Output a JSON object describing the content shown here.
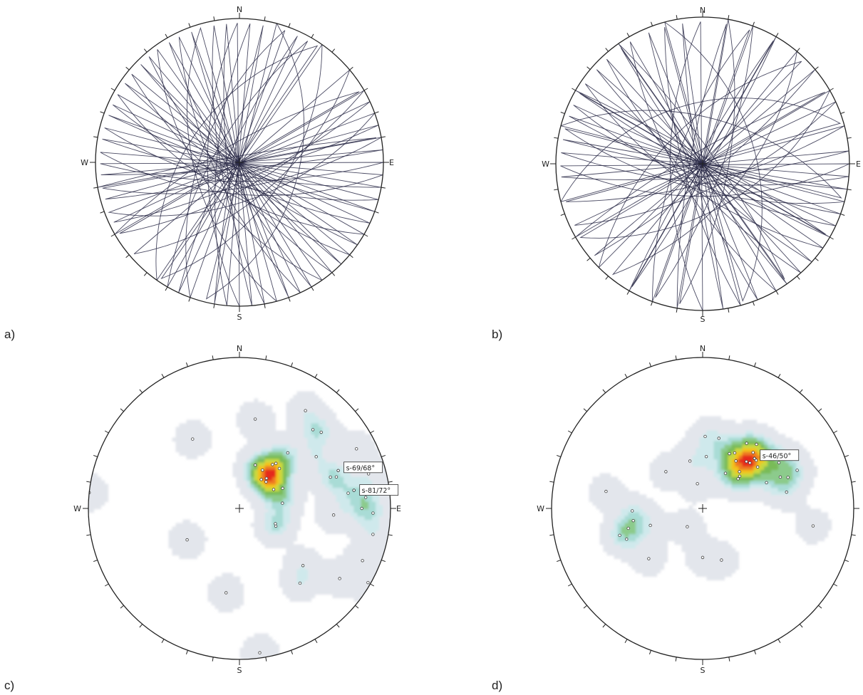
{
  "directions": {
    "n": "N",
    "s": "S",
    "e": "E",
    "w": "W"
  },
  "colors": {
    "circle": "#222222",
    "great_circle": "#2a2a48",
    "tick": "#222222",
    "pole": "#444444",
    "contour": [
      "#e3e6ec",
      "#cfe9ec",
      "#a9dcd6",
      "#8ccb8c",
      "#79bb58",
      "#c8d93f",
      "#f3c21d",
      "#ee7a20",
      "#e52b1f"
    ]
  },
  "panels": [
    {
      "id": "a",
      "label": "a)",
      "type": "great-circles",
      "great_circles": [
        {
          "dd": 350,
          "dip": 85
        },
        {
          "dd": 330,
          "dip": 75
        },
        {
          "dd": 305,
          "dip": 50
        },
        {
          "dd": 300,
          "dip": 70
        },
        {
          "dd": 295,
          "dip": 80
        },
        {
          "dd": 290,
          "dip": 60
        },
        {
          "dd": 280,
          "dip": 85
        },
        {
          "dd": 275,
          "dip": 72
        },
        {
          "dd": 270,
          "dip": 65
        },
        {
          "dd": 265,
          "dip": 80
        },
        {
          "dd": 260,
          "dip": 75
        },
        {
          "dd": 255,
          "dip": 55
        },
        {
          "dd": 250,
          "dip": 85
        },
        {
          "dd": 245,
          "dip": 70
        },
        {
          "dd": 240,
          "dip": 80
        },
        {
          "dd": 235,
          "dip": 60
        },
        {
          "dd": 230,
          "dip": 75
        },
        {
          "dd": 225,
          "dip": 85
        },
        {
          "dd": 220,
          "dip": 70
        },
        {
          "dd": 215,
          "dip": 80
        },
        {
          "dd": 210,
          "dip": 65
        },
        {
          "dd": 205,
          "dip": 75
        },
        {
          "dd": 200,
          "dip": 85
        },
        {
          "dd": 195,
          "dip": 72
        },
        {
          "dd": 190,
          "dip": 80
        },
        {
          "dd": 185,
          "dip": 65
        },
        {
          "dd": 180,
          "dip": 75
        },
        {
          "dd": 175,
          "dip": 85
        },
        {
          "dd": 170,
          "dip": 70
        },
        {
          "dd": 165,
          "dip": 80
        },
        {
          "dd": 160,
          "dip": 60
        },
        {
          "dd": 155,
          "dip": 75
        },
        {
          "dd": 150,
          "dip": 70
        },
        {
          "dd": 140,
          "dip": 60
        },
        {
          "dd": 125,
          "dip": 55
        },
        {
          "dd": 105,
          "dip": 45
        }
      ]
    },
    {
      "id": "b",
      "label": "b)",
      "type": "great-circles",
      "great_circles": [
        {
          "dd": 345,
          "dip": 45
        },
        {
          "dd": 330,
          "dip": 80
        },
        {
          "dd": 315,
          "dip": 60
        },
        {
          "dd": 300,
          "dip": 85
        },
        {
          "dd": 290,
          "dip": 70
        },
        {
          "dd": 280,
          "dip": 80
        },
        {
          "dd": 270,
          "dip": 65
        },
        {
          "dd": 262,
          "dip": 85
        },
        {
          "dd": 255,
          "dip": 75
        },
        {
          "dd": 248,
          "dip": 80
        },
        {
          "dd": 240,
          "dip": 70
        },
        {
          "dd": 235,
          "dip": 85
        },
        {
          "dd": 228,
          "dip": 75
        },
        {
          "dd": 222,
          "dip": 80
        },
        {
          "dd": 215,
          "dip": 70
        },
        {
          "dd": 210,
          "dip": 85
        },
        {
          "dd": 205,
          "dip": 75
        },
        {
          "dd": 200,
          "dip": 80
        },
        {
          "dd": 195,
          "dip": 70
        },
        {
          "dd": 190,
          "dip": 85
        },
        {
          "dd": 185,
          "dip": 75
        },
        {
          "dd": 180,
          "dip": 65
        },
        {
          "dd": 175,
          "dip": 80
        },
        {
          "dd": 165,
          "dip": 75
        },
        {
          "dd": 155,
          "dip": 70
        },
        {
          "dd": 150,
          "dip": 55
        },
        {
          "dd": 140,
          "dip": 80
        },
        {
          "dd": 130,
          "dip": 60
        },
        {
          "dd": 120,
          "dip": 85
        },
        {
          "dd": 110,
          "dip": 75
        },
        {
          "dd": 100,
          "dip": 70
        },
        {
          "dd": 75,
          "dip": 50
        },
        {
          "dd": 55,
          "dip": 80
        },
        {
          "dd": 30,
          "dip": 85
        },
        {
          "dd": 15,
          "dip": 55
        }
      ]
    },
    {
      "id": "c",
      "label": "c)",
      "type": "pole-density",
      "poles": [
        {
          "dd": 146,
          "dip": 58
        },
        {
          "dd": 190,
          "dip": 62
        },
        {
          "dd": 200,
          "dip": 34
        },
        {
          "dd": 211,
          "dip": 33
        },
        {
          "dd": 225,
          "dip": 28
        },
        {
          "dd": 222,
          "dip": 30
        },
        {
          "dd": 217,
          "dip": 27
        },
        {
          "dd": 241,
          "dip": 29
        },
        {
          "dd": 221,
          "dip": 52
        },
        {
          "dd": 225,
          "dip": 41
        },
        {
          "dd": 219,
          "dip": 42
        },
        {
          "dd": 217,
          "dip": 40
        },
        {
          "dd": 245,
          "dip": 35
        },
        {
          "dd": 263,
          "dip": 32
        },
        {
          "dd": 296,
          "dip": 30
        },
        {
          "dd": 293,
          "dip": 29
        },
        {
          "dd": 252,
          "dip": 68
        },
        {
          "dd": 274,
          "dip": 64
        },
        {
          "dd": 214,
          "dip": 76
        },
        {
          "dd": 227,
          "dip": 73
        },
        {
          "dd": 262,
          "dip": 72
        },
        {
          "dd": 251,
          "dip": 65
        },
        {
          "dd": 236,
          "dip": 63
        },
        {
          "dd": 223,
          "dip": 71
        },
        {
          "dd": 243,
          "dip": 82
        },
        {
          "dd": 255,
          "dip": 83
        },
        {
          "dd": 272,
          "dip": 83
        },
        {
          "dd": 270,
          "dip": 78
        },
        {
          "dd": 265,
          "dip": 80
        },
        {
          "dd": 281,
          "dip": 84
        },
        {
          "dd": 300,
          "dip": 89
        },
        {
          "dd": 352,
          "dip": 88
        },
        {
          "dd": 305,
          "dip": 78
        },
        {
          "dd": 321,
          "dip": 65
        },
        {
          "dd": 293,
          "dip": 83
        },
        {
          "dd": 96,
          "dip": 90
        },
        {
          "dd": 312,
          "dip": 59
        },
        {
          "dd": 59,
          "dip": 44
        },
        {
          "dd": 9,
          "dip": 59
        }
      ],
      "clusters": [
        {
          "label": "s-69/68°",
          "dd": 249,
          "dip": 70
        },
        {
          "label": "s-81/72°",
          "dd": 261,
          "dip": 75
        }
      ]
    },
    {
      "id": "d",
      "label": "d)",
      "type": "pole-density",
      "poles": [
        {
          "dd": 165,
          "dip": 36
        },
        {
          "dd": 182,
          "dip": 51
        },
        {
          "dd": 184,
          "dip": 38
        },
        {
          "dd": 213,
          "dip": 31
        },
        {
          "dd": 206,
          "dip": 44
        },
        {
          "dd": 210,
          "dip": 46
        },
        {
          "dd": 215,
          "dip": 42
        },
        {
          "dd": 225,
          "dip": 38
        },
        {
          "dd": 222,
          "dip": 53
        },
        {
          "dd": 228,
          "dip": 51
        },
        {
          "dd": 233,
          "dip": 49
        },
        {
          "dd": 226,
          "dip": 47
        },
        {
          "dd": 248,
          "dip": 49
        },
        {
          "dd": 250,
          "dip": 62
        },
        {
          "dd": 259,
          "dip": 59
        },
        {
          "dd": 248,
          "dip": 68
        },
        {
          "dd": 279,
          "dip": 73
        },
        {
          "dd": 230,
          "dip": 34
        },
        {
          "dd": 229,
          "dip": 36
        },
        {
          "dd": 223,
          "dip": 46
        },
        {
          "dd": 239,
          "dip": 61
        },
        {
          "dd": 214,
          "dip": 55
        },
        {
          "dd": 193,
          "dip": 51
        },
        {
          "dd": 135,
          "dip": 38
        },
        {
          "dd": 168,
          "dip": 19
        },
        {
          "dd": 72,
          "dip": 40
        },
        {
          "dd": 80,
          "dip": 50
        },
        {
          "dd": 88,
          "dip": 50
        },
        {
          "dd": 75,
          "dip": 54
        },
        {
          "dd": 100,
          "dip": 66
        },
        {
          "dd": 72,
          "dip": 60
        },
        {
          "dd": 68,
          "dip": 57
        },
        {
          "dd": 47,
          "dip": 52
        },
        {
          "dd": 360,
          "dip": 36
        },
        {
          "dd": 340,
          "dip": 40
        },
        {
          "dd": 40,
          "dip": 18
        },
        {
          "dd": 220,
          "dip": 58
        },
        {
          "dd": 227,
          "dip": 56
        },
        {
          "dd": 236,
          "dip": 64
        },
        {
          "dd": 248,
          "dip": 58
        }
      ],
      "clusters": [
        {
          "label": "s-46/50°",
          "dd": 226,
          "dip": 51
        }
      ]
    }
  ]
}
